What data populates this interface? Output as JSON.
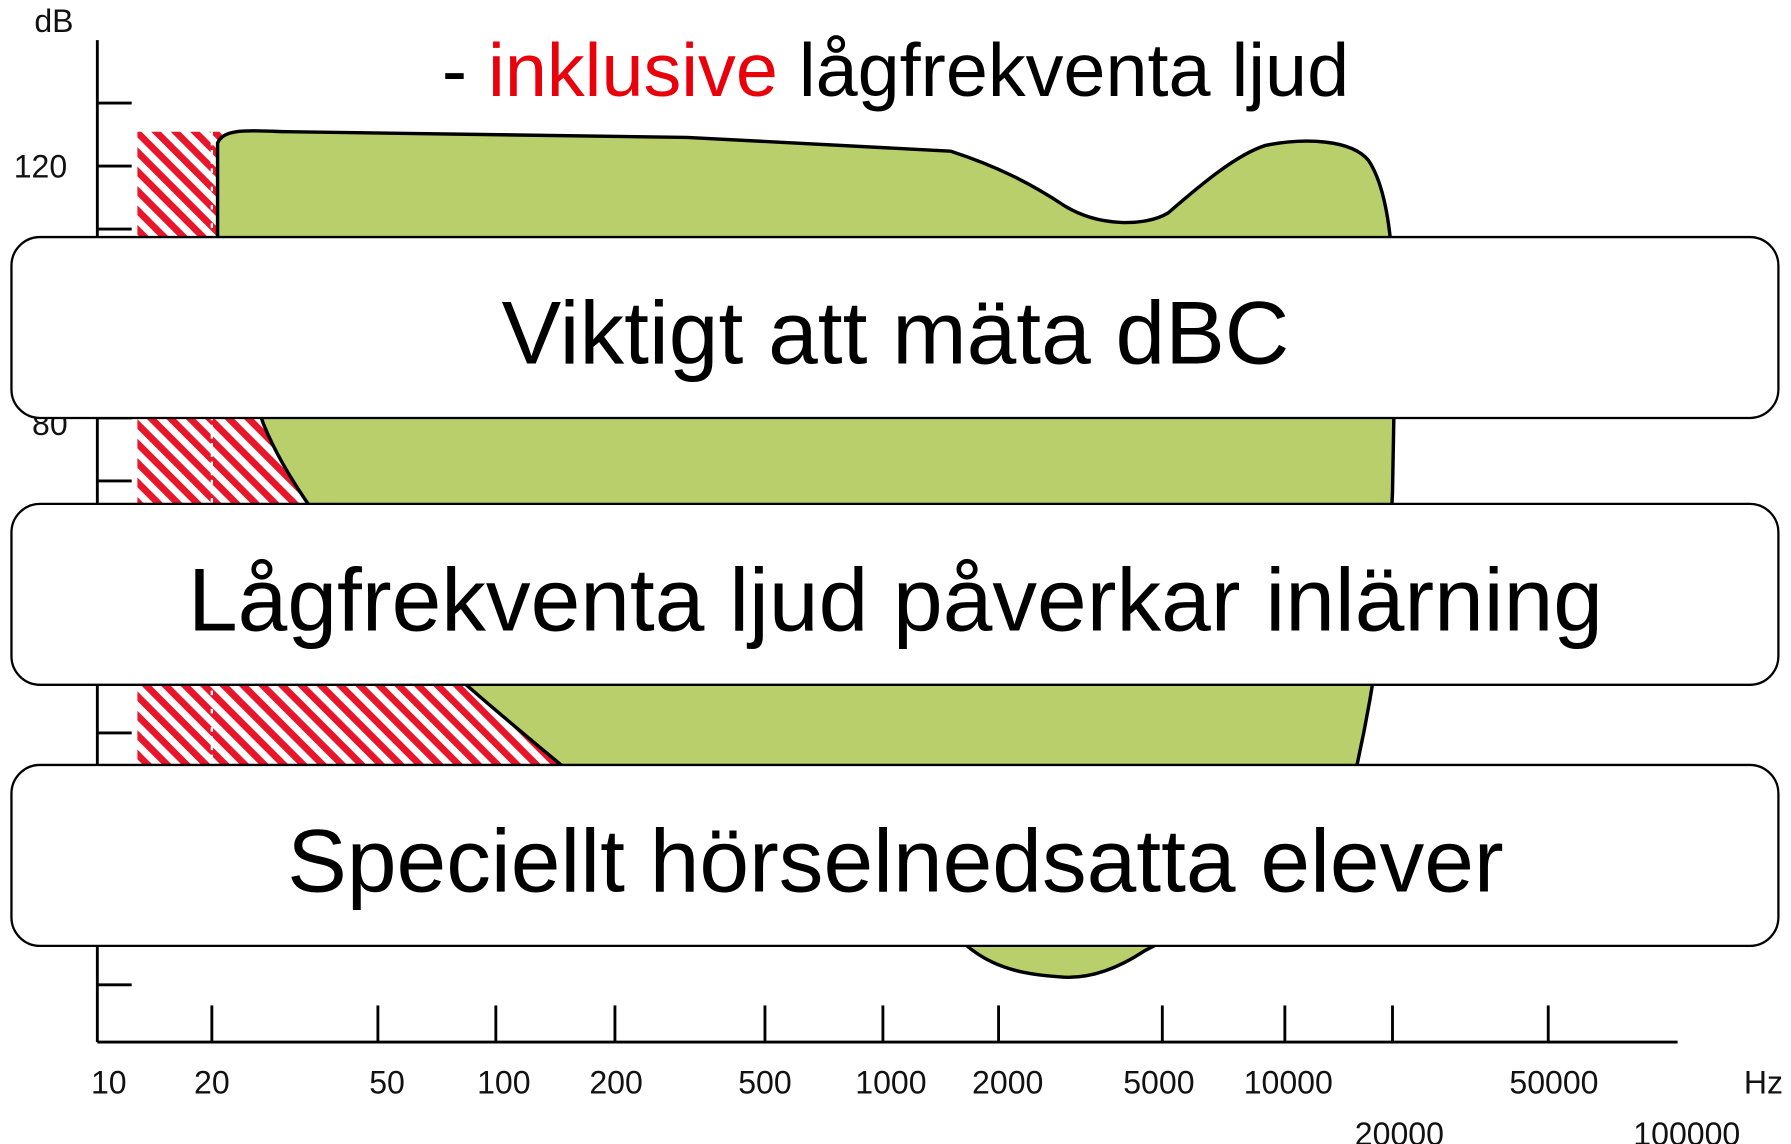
{
  "title": {
    "prefix": "-",
    "highlight": "inklusive",
    "rest": "lågfrekventa ljud"
  },
  "axis": {
    "y_unit": "dB",
    "y_labels": [
      "120",
      "80"
    ],
    "x_unit": "Hz",
    "x_labels": [
      "10",
      "20",
      "50",
      "100",
      "200",
      "500",
      "1000",
      "2000",
      "5000",
      "10000",
      "50000"
    ],
    "x_labels_lower": [
      "20000",
      "100000"
    ]
  },
  "boxes": [
    "Viktigt att mäta dBC",
    "Lågfrekventa ljud påverkar inlärning",
    "Speciellt hörselnedsatta elever"
  ]
}
